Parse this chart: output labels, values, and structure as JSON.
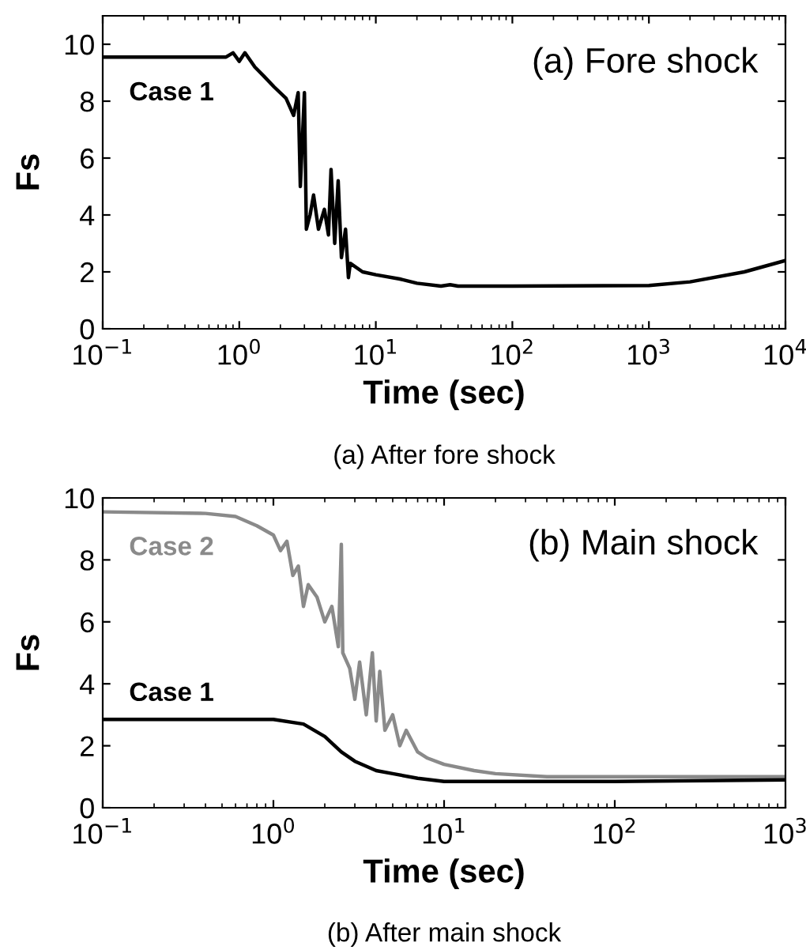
{
  "chart_data": [
    {
      "type": "line",
      "title": "(a) Fore shock",
      "xlabel": "Time (sec)",
      "ylabel": "Fs",
      "annotations": [
        "(a) After fore shock"
      ],
      "log": "x",
      "xlim": [
        0.1,
        10000
      ],
      "xticks": [
        {
          "value": 0.1,
          "label": "10$^{−1}$"
        },
        {
          "value": 1,
          "label": "10$^{0}$"
        },
        {
          "value": 10,
          "label": "10$^{1}$"
        },
        {
          "value": 100,
          "label": "10$^{2}$"
        },
        {
          "value": 1000,
          "label": "10$^{3}$"
        },
        {
          "value": 10000,
          "label": "10$^{4}$"
        }
      ],
      "ylim": [
        0,
        11
      ],
      "yticks": [
        0,
        2,
        4,
        6,
        8,
        10
      ],
      "grid": false,
      "legend": false,
      "series": [
        {
          "name": "Case 1",
          "color": "#000000",
          "x": [
            0.1,
            0.8,
            0.9,
            1.0,
            1.1,
            1.3,
            1.5,
            1.8,
            2.2,
            2.5,
            2.7,
            2.8,
            3.0,
            3.1,
            3.3,
            3.5,
            3.8,
            4.2,
            4.5,
            4.7,
            5.0,
            5.3,
            5.6,
            6.0,
            6.3,
            6.5,
            8,
            10,
            15,
            20,
            30,
            35,
            40,
            100,
            1000,
            2000,
            5000,
            10000
          ],
          "values": [
            9.55,
            9.55,
            9.7,
            9.4,
            9.7,
            9.2,
            8.9,
            8.5,
            8.1,
            7.5,
            8.3,
            5.0,
            8.3,
            3.5,
            4.0,
            4.7,
            3.5,
            4.2,
            3.3,
            5.6,
            3.0,
            5.2,
            2.5,
            3.5,
            1.8,
            2.3,
            2.0,
            1.9,
            1.75,
            1.6,
            1.5,
            1.55,
            1.5,
            1.5,
            1.52,
            1.65,
            2.0,
            2.4
          ]
        }
      ]
    },
    {
      "type": "line",
      "title": "(b) Main shock",
      "xlabel": "Time (sec)",
      "ylabel": "Fs",
      "annotations": [
        "(b) After main shock"
      ],
      "log": "x",
      "xlim": [
        0.1,
        1000
      ],
      "xticks": [
        {
          "value": 0.1,
          "label": "10$^{−1}$"
        },
        {
          "value": 1,
          "label": "10$^{0}$"
        },
        {
          "value": 10,
          "label": "10$^{1}$"
        },
        {
          "value": 100,
          "label": "10$^{2}$"
        },
        {
          "value": 1000,
          "label": "10$^{3}$"
        }
      ],
      "ylim": [
        0,
        10
      ],
      "yticks": [
        0,
        2,
        4,
        6,
        8,
        10
      ],
      "grid": false,
      "legend": false,
      "series": [
        {
          "name": "Case 2",
          "color": "#8a8a8a",
          "x": [
            0.1,
            0.4,
            0.6,
            0.8,
            1.0,
            1.1,
            1.2,
            1.3,
            1.4,
            1.5,
            1.6,
            1.8,
            2.0,
            2.2,
            2.4,
            2.5,
            2.55,
            2.8,
            3.0,
            3.2,
            3.5,
            3.8,
            4.0,
            4.2,
            4.5,
            5,
            5.5,
            6,
            7,
            8,
            10,
            15,
            20,
            40,
            100,
            1000
          ],
          "values": [
            9.55,
            9.5,
            9.4,
            9.1,
            8.8,
            8.3,
            8.6,
            7.5,
            7.8,
            6.5,
            7.2,
            6.8,
            6.0,
            6.5,
            5.2,
            8.5,
            5.0,
            4.5,
            3.5,
            4.7,
            3.0,
            5.0,
            2.8,
            4.4,
            2.5,
            3.0,
            2.0,
            2.5,
            1.8,
            1.6,
            1.4,
            1.2,
            1.1,
            1.0,
            1.0,
            1.0
          ]
        },
        {
          "name": "Case 1",
          "color": "#000000",
          "x": [
            0.1,
            1.0,
            1.5,
            2,
            2.5,
            3,
            4,
            5,
            7,
            10,
            100,
            1000
          ],
          "values": [
            2.85,
            2.85,
            2.7,
            2.3,
            1.8,
            1.5,
            1.2,
            1.1,
            0.95,
            0.85,
            0.85,
            0.9
          ]
        }
      ]
    }
  ]
}
